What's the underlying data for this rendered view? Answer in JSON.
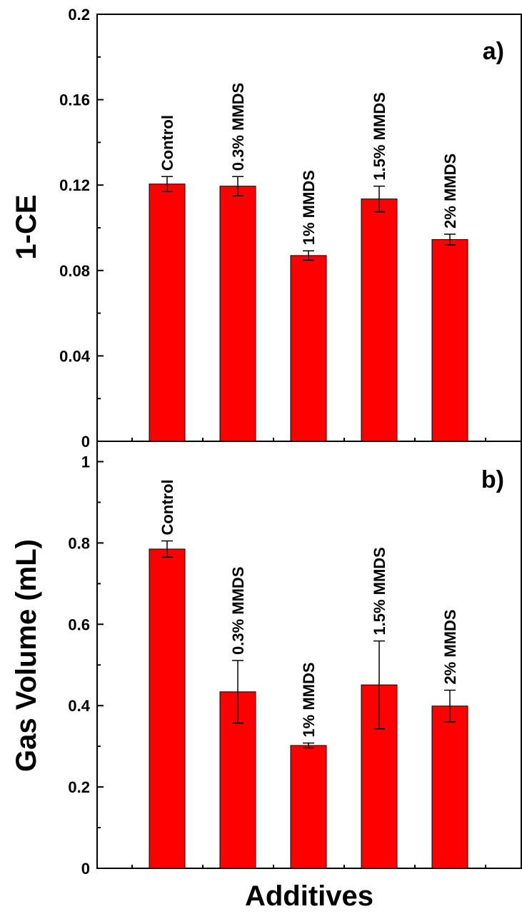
{
  "chart_data": [
    {
      "type": "bar",
      "panel_label": "a)",
      "ylabel": "1-CE",
      "xlabel": "",
      "ylim": [
        0,
        0.2
      ],
      "yticks": [
        "0",
        "0.04",
        "0.08",
        "0.12",
        "0.16",
        "0.2"
      ],
      "ytick_values": [
        0,
        0.04,
        0.08,
        0.12,
        0.16,
        0.2
      ],
      "categories": [
        "Control",
        "0.3% MMDS",
        "1% MMDS",
        "1.5% MMDS",
        "2% MMDS"
      ],
      "values": [
        0.1205,
        0.1195,
        0.087,
        0.1135,
        0.0945
      ],
      "errors": [
        0.0035,
        0.0045,
        0.0022,
        0.006,
        0.0025
      ],
      "bar_color": "#ff0000",
      "grid": false
    },
    {
      "type": "bar",
      "panel_label": "b)",
      "ylabel": "Gas Volume (mL)",
      "xlabel": "Additives",
      "ylim": [
        0,
        1.05
      ],
      "yticks": [
        "0",
        "0.2",
        "0.4",
        "0.6",
        "0.8",
        "1"
      ],
      "ytick_values": [
        0,
        0.2,
        0.4,
        0.6,
        0.8,
        1.0
      ],
      "categories": [
        "Control",
        "0.3% MMDS",
        "1% MMDS",
        "1.5% MMDS",
        "2% MMDS"
      ],
      "values": [
        0.785,
        0.434,
        0.302,
        0.451,
        0.399
      ],
      "errors": [
        0.02,
        0.077,
        0.006,
        0.108,
        0.039
      ],
      "bar_color": "#ff0000",
      "grid": false
    }
  ]
}
